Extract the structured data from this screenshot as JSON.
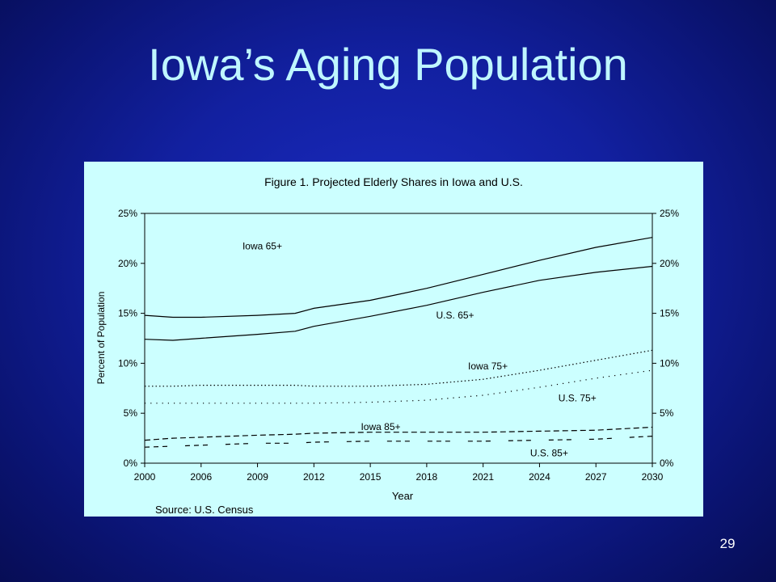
{
  "slide": {
    "title": "Iowa’s Aging Population",
    "number": "29"
  },
  "chart_data": {
    "type": "line",
    "title": "Figure 1. Projected Elderly Shares in Iowa and U.S.",
    "xlabel": "Year",
    "ylabel": "Percent of Population",
    "source": "Source: U.S. Census",
    "x": [
      2000,
      2003,
      2006,
      2009,
      2011,
      2012,
      2015,
      2018,
      2021,
      2024,
      2027,
      2030
    ],
    "x_ticks": [
      "2000",
      "2006",
      "2009",
      "2012",
      "2015",
      "2018",
      "2021",
      "2024",
      "2027",
      "2030"
    ],
    "y_ticks": [
      "0%",
      "5%",
      "10%",
      "15%",
      "20%",
      "25%"
    ],
    "ylim": [
      0,
      25
    ],
    "grid": false,
    "legend": "inline labels",
    "series": [
      {
        "name": "Iowa 65+",
        "style": "solid",
        "values": [
          14.8,
          14.6,
          14.6,
          14.8,
          15.0,
          15.5,
          16.3,
          17.5,
          18.9,
          20.3,
          21.6,
          22.6
        ]
      },
      {
        "name": "U.S. 65+",
        "style": "solid",
        "values": [
          12.4,
          12.3,
          12.5,
          12.9,
          13.2,
          13.7,
          14.7,
          15.8,
          17.1,
          18.3,
          19.1,
          19.7
        ]
      },
      {
        "name": "Iowa 75+",
        "style": "dotted",
        "values": [
          7.7,
          7.7,
          7.8,
          7.8,
          7.8,
          7.7,
          7.7,
          7.9,
          8.4,
          9.3,
          10.3,
          11.3
        ]
      },
      {
        "name": "U.S. 75+",
        "style": "sparse-dotted",
        "values": [
          6.0,
          6.0,
          6.0,
          6.0,
          6.0,
          6.0,
          6.1,
          6.3,
          6.8,
          7.6,
          8.5,
          9.3
        ]
      },
      {
        "name": "Iowa 85+",
        "style": "dashed",
        "values": [
          2.3,
          2.5,
          2.6,
          2.8,
          2.9,
          3.0,
          3.1,
          3.1,
          3.1,
          3.2,
          3.3,
          3.6
        ]
      },
      {
        "name": "U.S. 85+",
        "style": "broken-dashed",
        "values": [
          1.6,
          1.7,
          1.8,
          2.0,
          2.0,
          2.1,
          2.2,
          2.2,
          2.2,
          2.3,
          2.4,
          2.7
        ]
      }
    ]
  }
}
